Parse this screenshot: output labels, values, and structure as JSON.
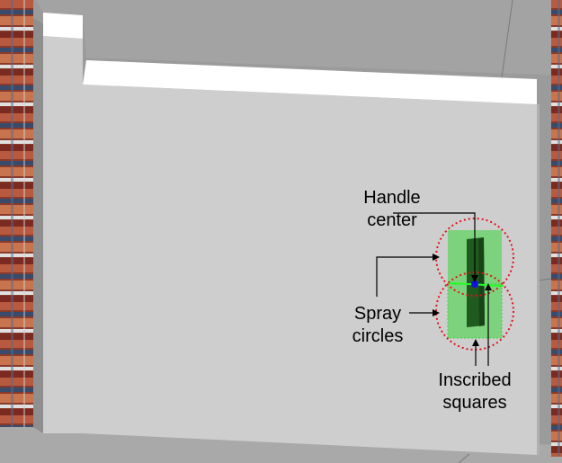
{
  "colors": {
    "background": "#9b9b9b",
    "wall_face": "#cecece",
    "wall_top": "#ffffff",
    "door_fill": "#1f5a1f",
    "square_fill": "#62d462",
    "circle_outline": "#e0141c",
    "handle_point": "#1010e0",
    "handle_line": "#22ff22"
  },
  "labels": {
    "handle_center": [
      "Handle",
      "center"
    ],
    "spray_circles": [
      "Spray",
      "circles"
    ],
    "inscribed_squares": [
      "Inscribed",
      "squares"
    ]
  }
}
